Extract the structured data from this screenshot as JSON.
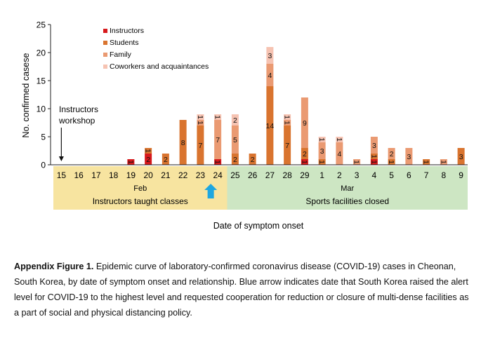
{
  "chart_data": {
    "type": "bar",
    "stacked": true,
    "ylabel": "No. confirmed casese",
    "xlabel": "Date of symptom onset",
    "ylim": [
      0,
      25
    ],
    "yticks": [
      0,
      5,
      10,
      15,
      20,
      25
    ],
    "categories": [
      "15",
      "16",
      "17",
      "18",
      "19",
      "20",
      "21",
      "22",
      "23",
      "24",
      "25",
      "26",
      "27",
      "28",
      "29",
      "1",
      "2",
      "3",
      "4",
      "5",
      "6",
      "7",
      "8",
      "9"
    ],
    "month_labels": [
      {
        "label": "Feb",
        "from": 0,
        "to": 9
      },
      {
        "label": "Mar",
        "from": 10,
        "to": 23
      }
    ],
    "series": [
      {
        "name": "Instructors",
        "color": "#d7191c",
        "values": [
          0,
          0,
          0,
          0,
          1,
          2,
          0,
          0,
          0,
          1,
          0,
          0,
          0,
          0,
          1,
          0,
          0,
          0,
          1,
          0,
          0,
          0,
          0,
          0
        ]
      },
      {
        "name": "Students",
        "color": "#d9742f",
        "values": [
          0,
          0,
          0,
          0,
          0,
          1,
          2,
          8,
          7,
          0,
          2,
          2,
          14,
          7,
          2,
          1,
          0,
          0,
          1,
          1,
          0,
          1,
          0,
          3
        ]
      },
      {
        "name": "Family",
        "color": "#ea9a72",
        "values": [
          0,
          0,
          0,
          0,
          0,
          0,
          0,
          0,
          1,
          7,
          5,
          0,
          4,
          1,
          9,
          3,
          4,
          1,
          3,
          2,
          3,
          0,
          1,
          0
        ]
      },
      {
        "name": "Coworkers and acquaintances",
        "color": "#f6c3b2",
        "values": [
          0,
          0,
          0,
          0,
          0,
          0,
          0,
          0,
          1,
          1,
          2,
          0,
          3,
          1,
          0,
          1,
          1,
          0,
          0,
          0,
          0,
          0,
          0,
          0
        ]
      }
    ],
    "legend_position": "top-left",
    "grid": false,
    "annotations": {
      "workshop_line1": "Instructors",
      "workshop_line2": "workshop",
      "workshop_category": "15",
      "arrow_category": "24",
      "arrow_color": "#1ea7e0"
    },
    "periods": [
      {
        "label": "Instructors taught classes",
        "from": 0,
        "to": 9,
        "color": "#f7e4a0"
      },
      {
        "label": "Sports facilities closed",
        "from": 10,
        "to": 23,
        "color": "#cde6c3"
      }
    ]
  },
  "caption": {
    "label": "Appendix Figure 1.",
    "text": " Epidemic curve of laboratory-confirmed coronavirus disease (COVID-19) cases in Cheonan, South Korea, by date of symptom onset and relationship. Blue arrow indicates date that South Korea raised the alert level for COVID-19 to the highest level and requested cooperation for reduction or closure of multi-dense facilities as a part of social and physical distancing policy."
  }
}
